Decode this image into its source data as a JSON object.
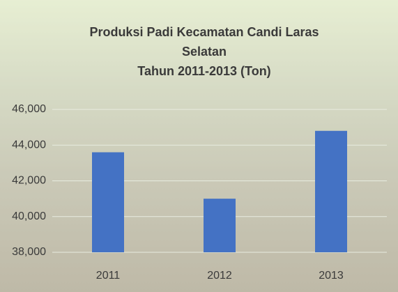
{
  "chart_data": {
    "type": "bar",
    "title": [
      "Produksi Padi  Kecamatan Candi Laras",
      "Selatan",
      "Tahun 2011-2013 (Ton)"
    ],
    "categories": [
      "2011",
      "2012",
      "2013"
    ],
    "values": [
      43600,
      41000,
      44800
    ],
    "color": "#4472c4",
    "ylim": [
      38000,
      46000
    ],
    "yticks": [
      {
        "value": 38000,
        "label": "38,000"
      },
      {
        "value": 40000,
        "label": "40,000"
      },
      {
        "value": 42000,
        "label": "42,000"
      },
      {
        "value": 44000,
        "label": "44,000"
      },
      {
        "value": 46000,
        "label": "46,000"
      }
    ],
    "grid": true
  }
}
